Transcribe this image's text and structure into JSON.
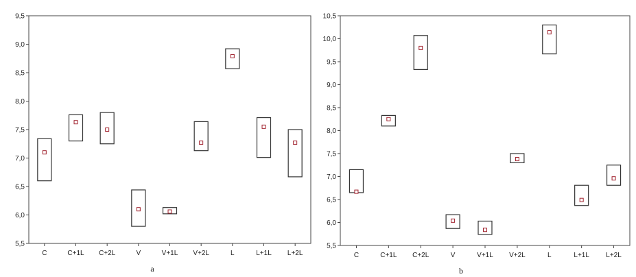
{
  "chart_data": [
    {
      "type": "box",
      "label": "a",
      "categories": [
        "C",
        "C+1L",
        "C+2L",
        "V",
        "V+1L",
        "V+2L",
        "L",
        "L+1L",
        "L+2L"
      ],
      "means": [
        7.1,
        7.63,
        7.5,
        6.1,
        6.06,
        7.27,
        8.79,
        7.55,
        7.27
      ],
      "low": [
        6.6,
        7.3,
        7.25,
        5.8,
        6.02,
        7.13,
        8.57,
        7.01,
        6.67
      ],
      "high": [
        7.34,
        7.76,
        7.8,
        6.44,
        6.13,
        7.64,
        8.92,
        7.71,
        7.5
      ],
      "ylim": [
        5.5,
        9.5
      ],
      "yticks": [
        "5,5",
        "6,0",
        "6,5",
        "7,0",
        "7,5",
        "8,0",
        "8,5",
        "9,0",
        "9,5"
      ],
      "xlabel": "",
      "ylabel": "",
      "grid": false,
      "colors": {
        "box": "#333333",
        "mean_marker": "#a0202c"
      }
    },
    {
      "type": "box",
      "label": "b",
      "categories": [
        "C",
        "C+1L",
        "C+2L",
        "V",
        "V+1L",
        "V+2L",
        "L",
        "L+1L",
        "L+2L"
      ],
      "means": [
        6.67,
        8.25,
        9.8,
        6.04,
        5.84,
        7.38,
        10.14,
        6.49,
        6.96
      ],
      "low": [
        6.65,
        8.1,
        9.33,
        5.87,
        5.74,
        7.3,
        9.67,
        6.37,
        6.81
      ],
      "high": [
        7.15,
        8.33,
        10.07,
        6.17,
        6.03,
        7.5,
        10.3,
        6.81,
        7.25
      ],
      "ylim": [
        5.5,
        10.5
      ],
      "yticks": [
        "5,5",
        "6,0",
        "6,5",
        "7,0",
        "7,5",
        "8,0",
        "8,5",
        "9,0",
        "9,5",
        "10,0",
        "10,5"
      ],
      "xlabel": "",
      "ylabel": "",
      "grid": false,
      "colors": {
        "box": "#333333",
        "mean_marker": "#a0202c"
      }
    }
  ]
}
